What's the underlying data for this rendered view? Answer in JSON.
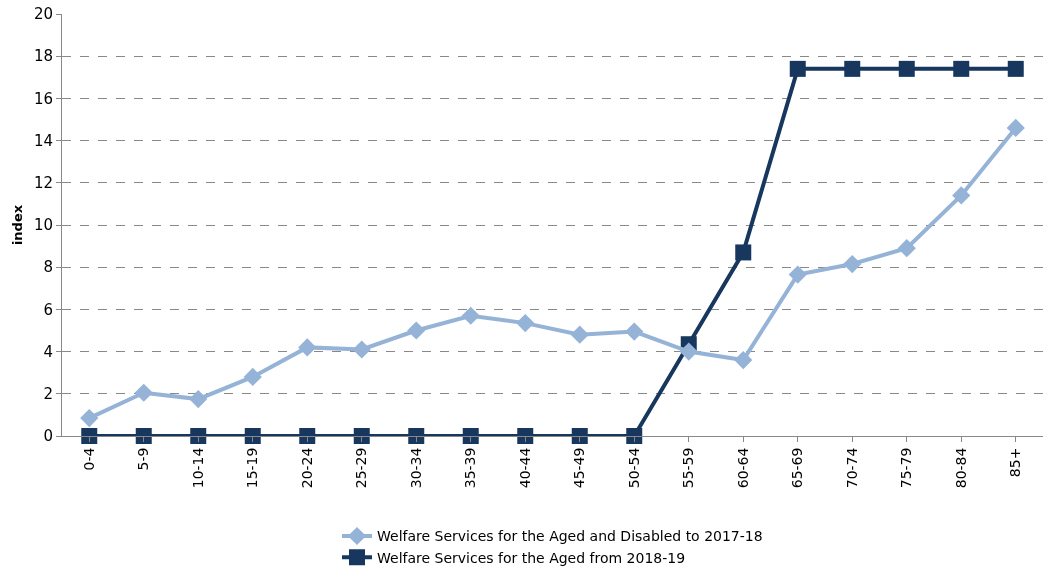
{
  "chart_data": {
    "type": "line",
    "ylabel": "index",
    "categories": [
      "0-4",
      "5-9",
      "10-14",
      "15-19",
      "20-24",
      "25-29",
      "30-34",
      "35-39",
      "40-44",
      "45-49",
      "50-54",
      "55-59",
      "60-64",
      "65-69",
      "70-74",
      "75-79",
      "80-84",
      "85+"
    ],
    "ylim": [
      0,
      20
    ],
    "yticks": [
      0,
      2,
      4,
      6,
      8,
      10,
      12,
      14,
      16,
      18,
      20
    ],
    "grid": "y",
    "legend": "bottom",
    "line_style": "solid",
    "series": [
      {
        "name": "Welfare Services for the Aged and Disabled to 2017-18",
        "color": "#95b3d7",
        "marker": "diamond",
        "values": [
          0.85,
          2.05,
          1.75,
          2.8,
          4.2,
          4.1,
          5.0,
          5.7,
          5.35,
          4.8,
          4.95,
          4.0,
          3.6,
          7.65,
          8.15,
          8.9,
          11.4,
          14.6
        ]
      },
      {
        "name": "Welfare Services for the Aged from 2018-19",
        "color": "#17375e",
        "marker": "square",
        "values": [
          0,
          0,
          0,
          0,
          0,
          0,
          0,
          0,
          0,
          0,
          0,
          4.35,
          8.7,
          17.4,
          17.4,
          17.4,
          17.4,
          17.4
        ]
      }
    ]
  }
}
